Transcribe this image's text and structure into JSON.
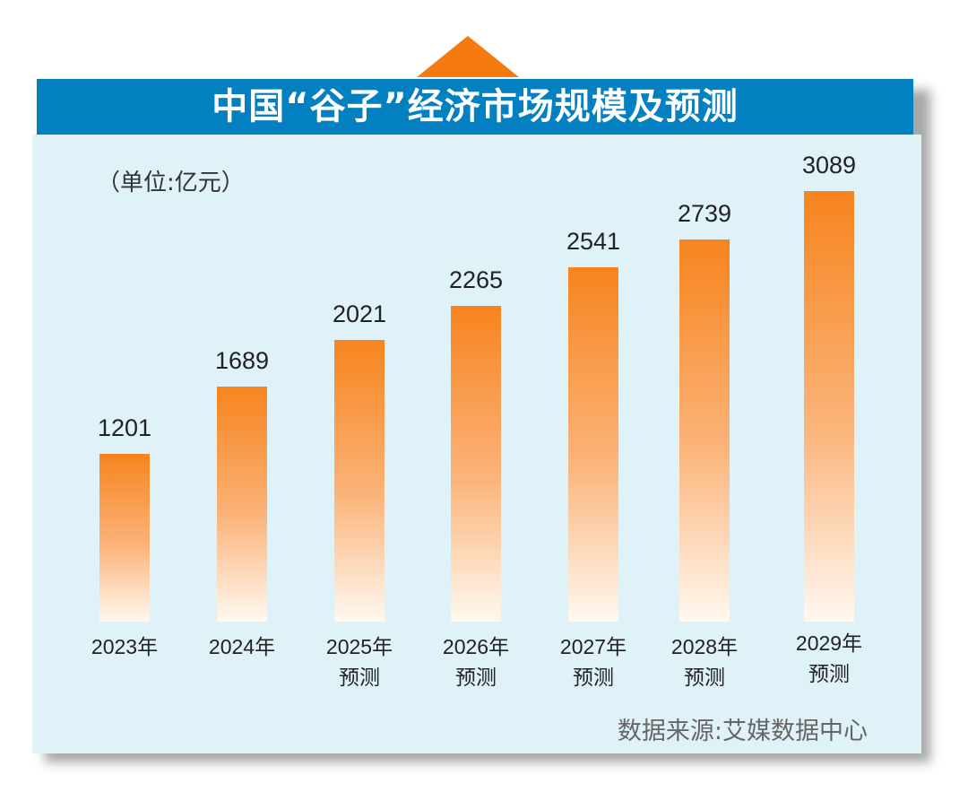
{
  "title": "中国“谷子”经济市场规模及预测",
  "unit_label": "（单位:亿元）",
  "source": "数据来源:艾媒数据中心",
  "colors": {
    "header": "#0380c0",
    "bar": "#f7841e",
    "panel": "#dff2f8",
    "triangle": "#f57a10"
  },
  "chart_data": {
    "type": "bar",
    "title": "中国“谷子”经济市场规模及预测",
    "ylabel": "单位:亿元",
    "categories": [
      "2023年",
      "2024年",
      "2025年",
      "2026年",
      "2027年",
      "2028年",
      "2029年"
    ],
    "sublabels": [
      "",
      "",
      "预测",
      "预测",
      "预测",
      "预测",
      "预测"
    ],
    "values": [
      1201,
      1689,
      2021,
      2265,
      2541,
      2739,
      3089
    ],
    "ylim": [
      0,
      3089
    ],
    "grid": false
  }
}
